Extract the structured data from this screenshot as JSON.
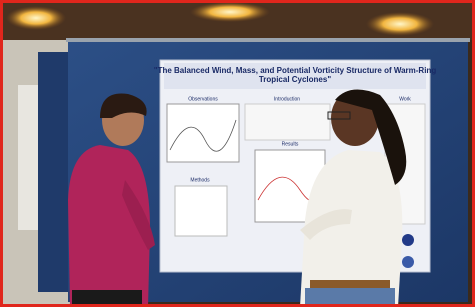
{
  "poster": {
    "title": [
      "\"The Balanced Wind, Mass, and Potential Vorticity Structure of Warm-Ring",
      "Tropical Cyclones\""
    ],
    "sections": {
      "observations": "Observations",
      "introduction": "Introduction",
      "results": "Results",
      "methods": "Methods",
      "work": "Work"
    }
  }
}
